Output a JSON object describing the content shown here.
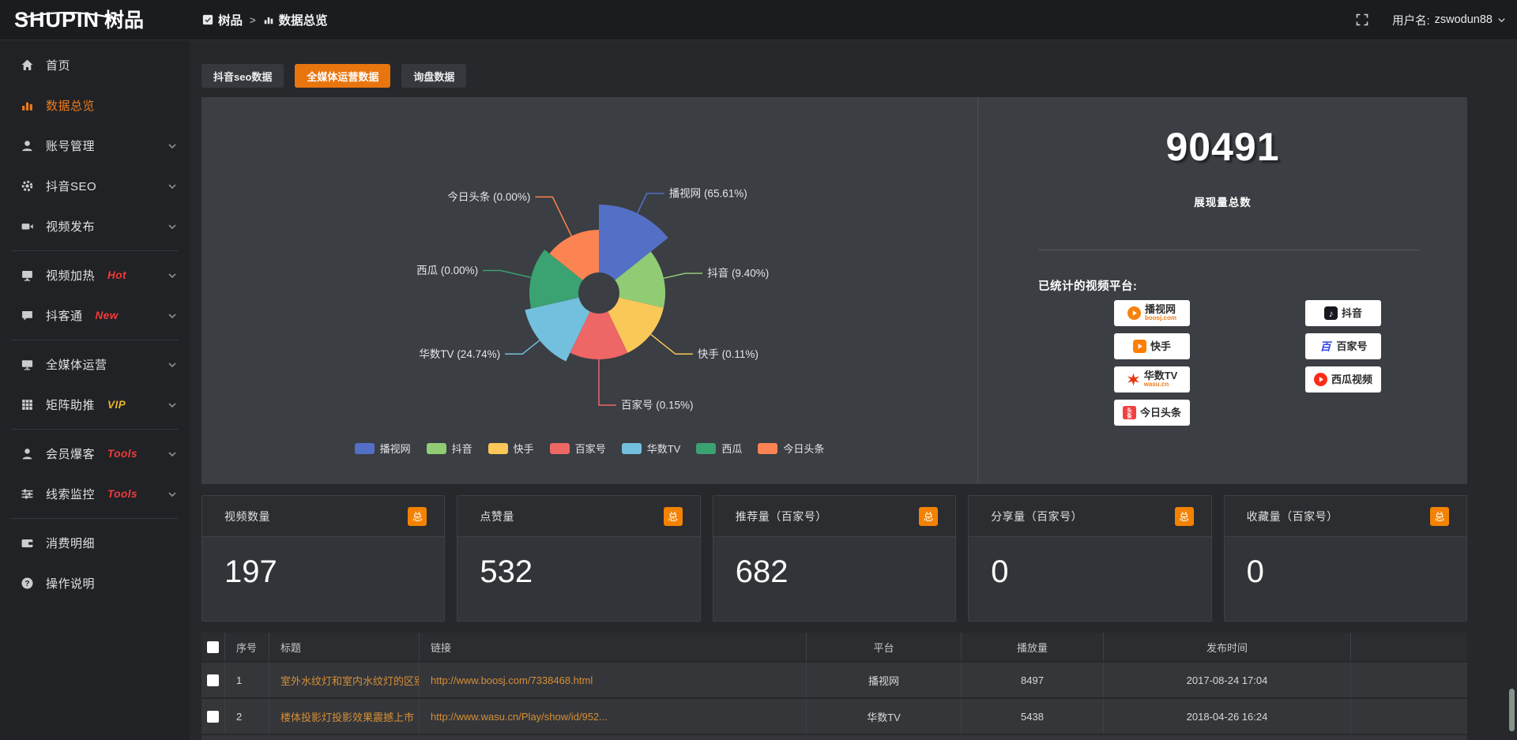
{
  "header": {
    "logo_en": "SHUPIN",
    "logo_cn": "树品",
    "breadcrumb": {
      "root": "树品",
      "current": "数据总览"
    },
    "username_label": "用户名:",
    "username": "zswodun88"
  },
  "sidebar": {
    "items": [
      {
        "key": "home",
        "icon": "home",
        "label": "首页"
      },
      {
        "key": "data-overview",
        "icon": "chart",
        "label": "数据总览",
        "active": true
      },
      {
        "key": "account",
        "icon": "user",
        "label": "账号管理",
        "chevron": true
      },
      {
        "key": "douyin-seo",
        "icon": "gear",
        "label": "抖音SEO",
        "chevron": true
      },
      {
        "key": "video-publish",
        "icon": "video",
        "label": "视频发布",
        "chevron": true,
        "divider_after": true
      },
      {
        "key": "video-heat",
        "icon": "screen",
        "label": "视频加热",
        "badge": "Hot",
        "chevron": true
      },
      {
        "key": "douke-tong",
        "icon": "chat",
        "label": "抖客通",
        "badge": "New",
        "chevron": true,
        "divider_after": true
      },
      {
        "key": "media-ops",
        "icon": "monitor",
        "label": "全媒体运营",
        "chevron": true
      },
      {
        "key": "matrix-boost",
        "icon": "grid",
        "label": "矩阵助推",
        "badge": "VIP",
        "chevron": true,
        "divider_after": true
      },
      {
        "key": "member-burst",
        "icon": "member",
        "label": "会员爆客",
        "badge": "Tools",
        "chevron": true
      },
      {
        "key": "clue-monitor",
        "icon": "sliders",
        "label": "线索监控",
        "badge": "Tools",
        "chevron": true,
        "divider_after": true
      },
      {
        "key": "expense",
        "icon": "wallet",
        "label": "消费明细"
      },
      {
        "key": "help",
        "icon": "help",
        "label": "操作说明"
      }
    ]
  },
  "tabs": [
    {
      "label": "抖音seo数据",
      "active": false
    },
    {
      "label": "全媒体运营数据",
      "active": true
    },
    {
      "label": "询盘数据",
      "active": false
    }
  ],
  "chart_data": {
    "type": "pie",
    "variant": "nightingale-rose-donut",
    "title": "",
    "legend_position": "bottom",
    "label_format": "{name} ({pct}%)",
    "inner_radius": 26,
    "series": [
      {
        "name": "播视网",
        "value_pct": 65.61,
        "pct_label": "65.61",
        "color": "#5470c6",
        "display_radius": 112,
        "label_ext": 28
      },
      {
        "name": "抖音",
        "value_pct": 9.4,
        "pct_label": "9.40",
        "color": "#91cc75",
        "display_radius": 84,
        "label_ext": 28
      },
      {
        "name": "快手",
        "value_pct": 0.11,
        "pct_label": "0.11",
        "color": "#fac858",
        "display_radius": 84,
        "label_ext": 40
      },
      {
        "name": "百家号",
        "value_pct": 0.15,
        "pct_label": "0.15",
        "color": "#ee6666",
        "display_radius": 84,
        "label_ext": 58
      },
      {
        "name": "华数TV",
        "value_pct": 24.74,
        "pct_label": "24.74",
        "color": "#73c0de",
        "display_radius": 96,
        "label_ext": 28
      },
      {
        "name": "西瓜",
        "value_pct": 0.0,
        "pct_label": "0.00",
        "color": "#3ba272",
        "display_radius": 88,
        "label_ext": 40
      },
      {
        "name": "今日头条",
        "value_pct": 0.0,
        "pct_label": "0.00",
        "color": "#fc8452",
        "display_radius": 80,
        "label_ext": 55
      }
    ]
  },
  "summary": {
    "total_value": "90491",
    "total_label": "展现量总数",
    "platforms_label": "已统计的视频平台:",
    "platforms": [
      {
        "icon": "boosj",
        "name": "播视网",
        "sub": "boosj.com"
      },
      {
        "icon": "douyin",
        "name": "抖音"
      },
      {
        "icon": "kuaishou",
        "name": "快手"
      },
      {
        "icon": "baijia",
        "name": "百家号"
      },
      {
        "icon": "wasu",
        "name": "华数TV",
        "sub": "wasu.cn"
      },
      {
        "icon": "xigua",
        "name": "西瓜视频"
      },
      {
        "icon": "toutiao",
        "name": "今日头条"
      }
    ]
  },
  "cards": [
    {
      "title": "视频数量",
      "badge": "总",
      "value": "197"
    },
    {
      "title": "点赞量",
      "badge": "总",
      "value": "532"
    },
    {
      "title": "推荐量（百家号）",
      "badge": "总",
      "value": "682"
    },
    {
      "title": "分享量（百家号）",
      "badge": "总",
      "value": "0"
    },
    {
      "title": "收藏量（百家号）",
      "badge": "总",
      "value": "0"
    }
  ],
  "table": {
    "headers": [
      "序号",
      "标题",
      "链接",
      "平台",
      "播放量",
      "发布时间"
    ],
    "rows": [
      {
        "index": "1",
        "title": "室外水纹灯和室内水纹灯的区别和简介",
        "link": "http://www.boosj.com/7338468.html",
        "platform": "播视网",
        "plays": "8497",
        "time": "2017-08-24 17:04"
      },
      {
        "index": "2",
        "title": "楼体投影灯投影效果震撼上市",
        "link": "http://www.wasu.cn/Play/show/id/952...",
        "platform": "华数TV",
        "plays": "5438",
        "time": "2018-04-26 16:24"
      }
    ]
  },
  "colors": {
    "accent_orange": "#e9750e",
    "badge_orange": "#f28200",
    "link_orange": "#d78f35",
    "hot_red": "#f43b3b",
    "vip_yellow": "#e7b62a",
    "panel_bg": "#3b3e43",
    "page_bg": "#26282c"
  }
}
